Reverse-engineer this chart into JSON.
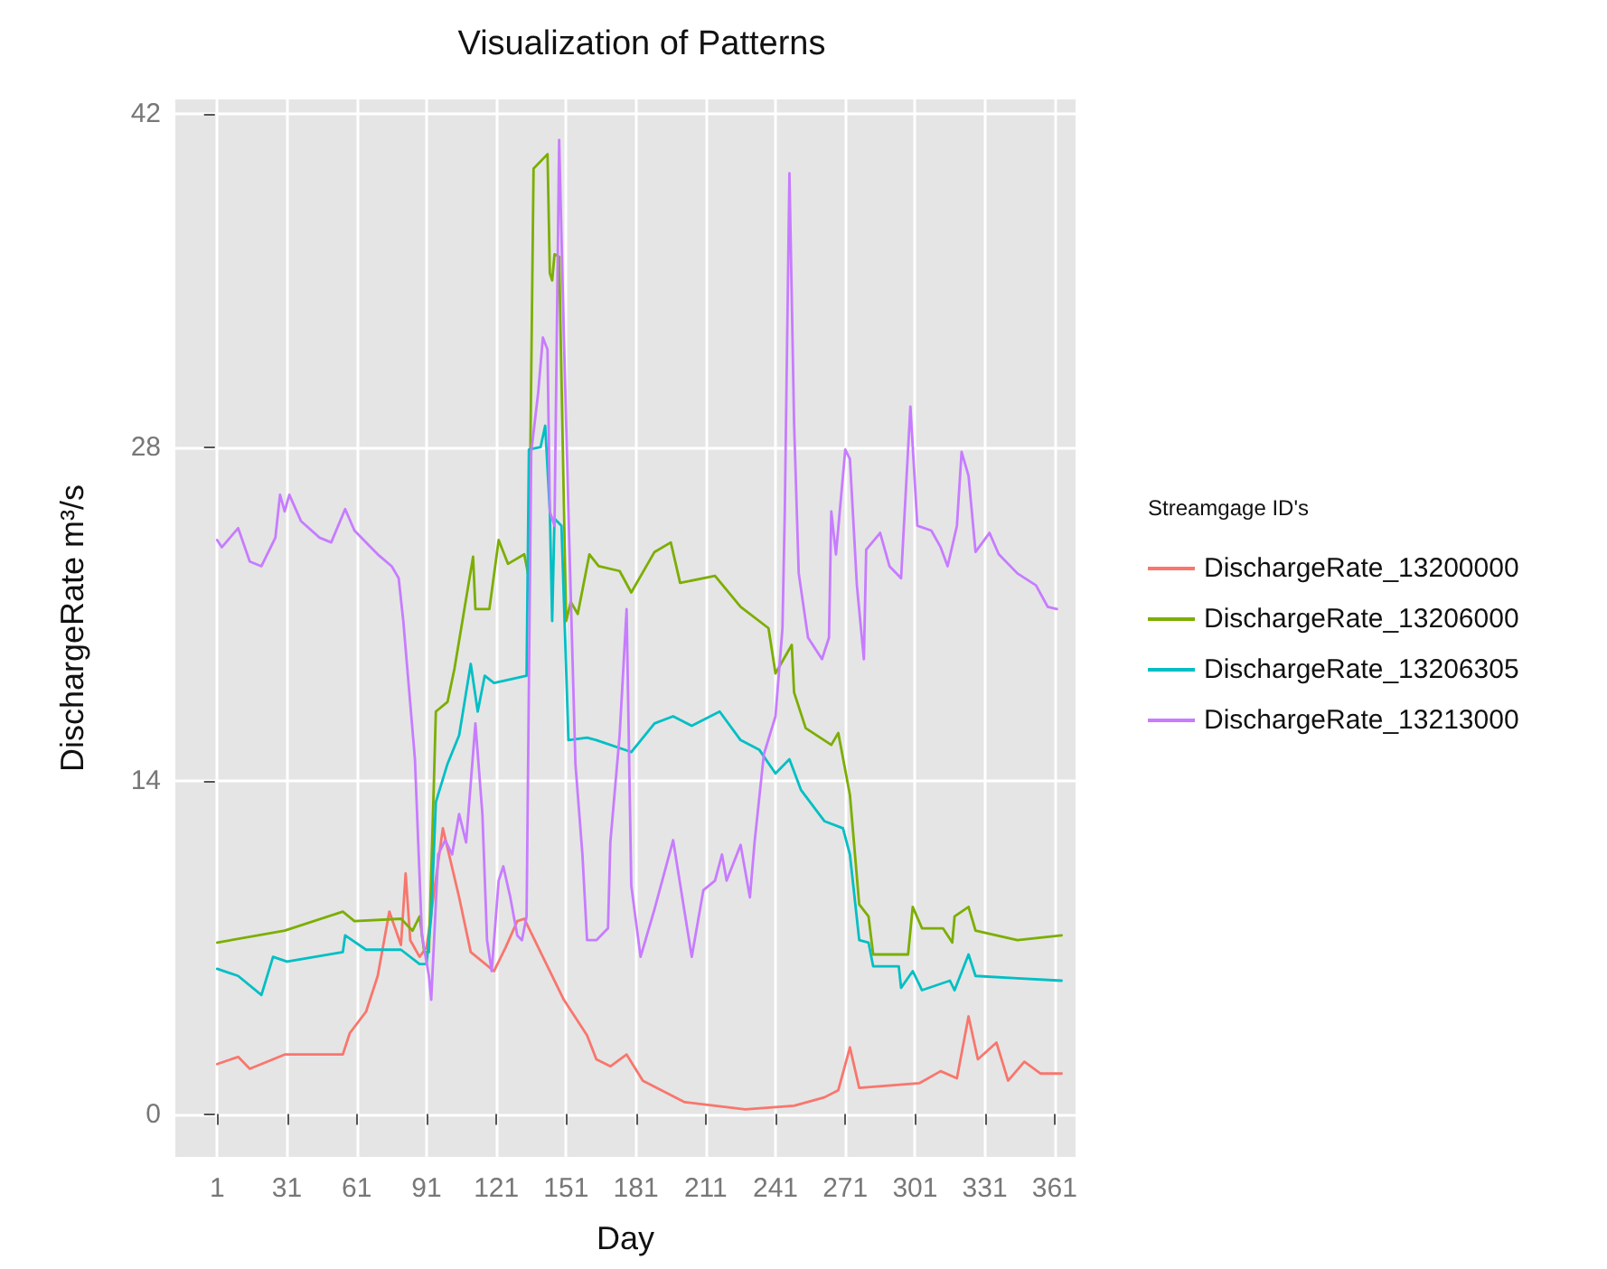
{
  "chart_data": {
    "type": "line",
    "title": "Visualization of Patterns",
    "xlabel": "Day",
    "ylabel": "DischargeRate m³/s",
    "legend_title": "Streamgage ID's",
    "legend": "right",
    "grid": true,
    "marker": "none",
    "line_style": "solid",
    "xlim": [
      -17,
      370
    ],
    "xticks": [
      1,
      31,
      61,
      91,
      121,
      151,
      181,
      211,
      241,
      271,
      301,
      331,
      361
    ],
    "ylim": [
      -1.8,
      42.6
    ],
    "yticks": [
      0,
      14,
      28,
      42
    ],
    "series": [
      {
        "name": "DischargeRate_13200000",
        "color": "#f8766d",
        "x": [
          1,
          10,
          15,
          30,
          55,
          58,
          65,
          70,
          75,
          80,
          82,
          84,
          88,
          91,
          98,
          105,
          110,
          115,
          120,
          125,
          130,
          133,
          140,
          150,
          160,
          164,
          170,
          177,
          184,
          202,
          228,
          249,
          262,
          268,
          273,
          277,
          303,
          312,
          319,
          324,
          328,
          336,
          341,
          348,
          355,
          364
        ],
        "values": [
          2.1,
          2.4,
          1.9,
          2.5,
          2.5,
          3.4,
          4.3,
          5.8,
          8.5,
          7.1,
          10.1,
          7.3,
          6.6,
          7.0,
          12.0,
          9.1,
          6.8,
          6.4,
          6.0,
          7.0,
          8.1,
          8.2,
          6.8,
          4.8,
          3.3,
          2.3,
          2.0,
          2.5,
          1.4,
          0.5,
          0.2,
          0.35,
          0.7,
          1.0,
          2.8,
          1.1,
          1.3,
          1.8,
          1.5,
          4.1,
          2.3,
          3.0,
          1.4,
          2.2,
          1.7,
          1.7
        ]
      },
      {
        "name": "DischargeRate_13206000",
        "color": "#7cae00",
        "x": [
          1,
          30,
          55,
          60,
          80,
          85,
          88,
          90,
          92,
          94,
          95,
          100,
          103,
          111,
          112,
          118,
          122,
          126,
          133,
          135,
          137,
          143,
          144,
          145,
          146,
          148,
          151,
          153,
          156,
          161,
          165,
          174,
          179,
          189,
          196,
          200,
          215,
          226,
          238,
          241,
          248,
          249,
          254,
          265,
          268,
          273,
          277,
          281,
          283,
          298,
          300,
          304,
          313,
          317,
          318,
          324,
          327,
          345,
          364
        ],
        "values": [
          7.2,
          7.7,
          8.5,
          8.1,
          8.2,
          7.7,
          8.3,
          6.8,
          6.8,
          13.4,
          16.9,
          17.3,
          18.7,
          23.4,
          21.2,
          21.2,
          24.1,
          23.1,
          23.5,
          22.5,
          39.7,
          40.3,
          35.3,
          35.0,
          36.1,
          36.0,
          20.7,
          21.5,
          21.0,
          23.5,
          23.0,
          22.8,
          21.9,
          23.6,
          24.0,
          22.3,
          22.6,
          21.3,
          20.4,
          18.5,
          19.7,
          17.7,
          16.2,
          15.5,
          16.0,
          13.4,
          8.8,
          8.3,
          6.7,
          6.7,
          8.7,
          7.8,
          7.8,
          7.2,
          8.3,
          8.7,
          7.7,
          7.3,
          7.5
        ]
      },
      {
        "name": "DischargeRate_13206305",
        "color": "#00bfc4",
        "x": [
          1,
          10,
          20,
          25,
          31,
          55,
          56,
          65,
          80,
          88,
          91,
          93,
          95,
          100,
          105,
          110,
          113,
          116,
          120,
          134,
          135,
          140,
          142,
          144,
          145,
          146,
          149,
          152,
          160,
          164,
          179,
          189,
          197,
          205,
          217,
          226,
          234,
          241,
          247,
          252,
          262,
          270,
          273,
          277,
          281,
          283,
          294,
          295,
          300,
          304,
          316,
          318,
          324,
          327,
          345,
          364
        ],
        "values": [
          6.1,
          5.8,
          5.0,
          6.6,
          6.4,
          6.8,
          7.5,
          6.9,
          6.9,
          6.3,
          6.3,
          8.3,
          13.1,
          14.7,
          15.9,
          18.9,
          16.9,
          18.4,
          18.1,
          18.4,
          27.9,
          28.0,
          28.9,
          25.3,
          20.7,
          25.0,
          24.7,
          15.7,
          15.8,
          15.7,
          15.2,
          16.4,
          16.7,
          16.3,
          16.9,
          15.7,
          15.3,
          14.3,
          14.9,
          13.6,
          12.3,
          12.0,
          10.9,
          7.3,
          7.2,
          6.2,
          6.2,
          5.3,
          6.0,
          5.2,
          5.6,
          5.2,
          6.7,
          5.8,
          5.7,
          5.6
        ]
      },
      {
        "name": "DischargeRate_13213000",
        "color": "#c77cff",
        "x": [
          1,
          3,
          10,
          15,
          20,
          26,
          28,
          30,
          32,
          37,
          45,
          50,
          56,
          60,
          70,
          76,
          79,
          81,
          86,
          89,
          92,
          93,
          96,
          99,
          102,
          105,
          108,
          112,
          115,
          117,
          119,
          122,
          124,
          127,
          130,
          132,
          134,
          136,
          139,
          141,
          143,
          144,
          146,
          148,
          150,
          152,
          155,
          158,
          160,
          164,
          169,
          170,
          174,
          177,
          179,
          183,
          189,
          197,
          205,
          210,
          215,
          218,
          220,
          226,
          230,
          232,
          236,
          241,
          244,
          245,
          247,
          249,
          251,
          255,
          261,
          264,
          265,
          267,
          271,
          273,
          276,
          279,
          280,
          286,
          290,
          295,
          299,
          302,
          308,
          312,
          315,
          319,
          321,
          324,
          327,
          333,
          337,
          345,
          353,
          358,
          362
        ],
        "values": [
          24.1,
          23.8,
          24.6,
          23.2,
          23.0,
          24.2,
          26.0,
          25.3,
          26.0,
          24.9,
          24.2,
          24.0,
          25.4,
          24.5,
          23.5,
          23.0,
          22.5,
          20.7,
          14.9,
          7.5,
          5.8,
          4.8,
          10.9,
          11.5,
          10.9,
          12.6,
          11.4,
          16.4,
          12.6,
          7.3,
          6.0,
          9.8,
          10.4,
          9.1,
          7.5,
          7.3,
          8.3,
          27.8,
          30.3,
          32.6,
          32.1,
          25.3,
          24.7,
          40.9,
          32.8,
          25.3,
          14.7,
          10.9,
          7.3,
          7.3,
          7.8,
          11.4,
          15.9,
          21.2,
          9.6,
          6.6,
          8.6,
          11.5,
          6.6,
          9.4,
          9.8,
          10.9,
          9.8,
          11.3,
          9.1,
          11.4,
          15.1,
          16.7,
          20.4,
          25.3,
          39.5,
          29.0,
          22.7,
          20.0,
          19.1,
          20.0,
          25.3,
          23.5,
          27.9,
          27.5,
          22.2,
          19.1,
          23.7,
          24.4,
          23.0,
          22.5,
          29.7,
          24.7,
          24.5,
          23.8,
          23.0,
          24.7,
          27.8,
          26.8,
          23.6,
          24.4,
          23.5,
          22.7,
          22.2,
          21.3,
          21.2
        ]
      }
    ]
  }
}
